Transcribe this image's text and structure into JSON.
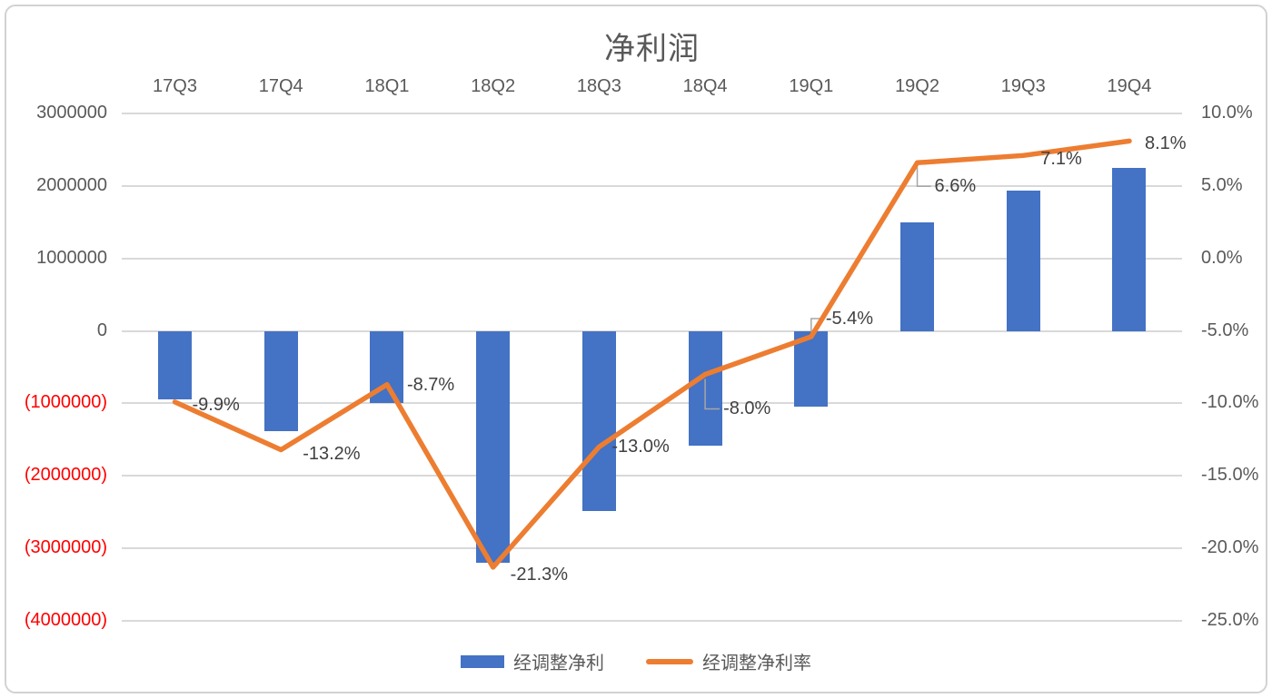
{
  "title": "净利润",
  "chart_data": {
    "type": "combo",
    "categories": [
      "17Q3",
      "17Q4",
      "18Q1",
      "18Q2",
      "18Q3",
      "18Q4",
      "19Q1",
      "19Q2",
      "19Q3",
      "19Q4"
    ],
    "series": [
      {
        "name": "经调整净利",
        "type": "bar",
        "axis": "left",
        "color": "#4472C4",
        "values": [
          -950000,
          -1380000,
          -990000,
          -3200000,
          -2480000,
          -1580000,
          -1050000,
          1500000,
          1930000,
          2250000
        ]
      },
      {
        "name": "经调整净利率",
        "type": "line",
        "axis": "right",
        "color": "#ED7D31",
        "values": [
          -9.9,
          -13.2,
          -8.7,
          -21.3,
          -13.0,
          -8.0,
          -5.4,
          6.6,
          7.1,
          8.1
        ],
        "labels": [
          "-9.9%",
          "-13.2%",
          "-8.7%",
          "-21.3%",
          "-13.0%",
          "-8.0%",
          "-5.4%",
          "6.6%",
          "7.1%",
          "8.1%"
        ],
        "label_offsets": [
          [
            19,
            3
          ],
          [
            24,
            4
          ],
          [
            22,
            0
          ],
          [
            19,
            8
          ],
          [
            14,
            0
          ],
          [
            20,
            38
          ],
          [
            16,
            -20
          ],
          [
            19,
            26
          ],
          [
            19,
            4
          ],
          [
            17,
            3
          ]
        ],
        "label_leaders": [
          false,
          false,
          false,
          false,
          false,
          true,
          true,
          true,
          false,
          false
        ],
        "leader_color": "#A6A6A6"
      }
    ],
    "left_axis": {
      "min": -4000000,
      "max": 3000000,
      "tick_step": 1000000,
      "tick_labels": [
        "3000000",
        "2000000",
        "1000000",
        "0",
        "(1000000)",
        "(2000000)",
        "(3000000)",
        "(4000000)"
      ],
      "tick_color": "#595959",
      "negative_tick_color": "#FF0000"
    },
    "right_axis": {
      "min": -25,
      "max": 10,
      "tick_step": 5,
      "tick_labels": [
        "10.0%",
        "5.0%",
        "0.0%",
        "-5.0%",
        "-10.0%",
        "-15.0%",
        "-20.0%",
        "-25.0%"
      ]
    },
    "grid": true,
    "category_labels_position": "top",
    "legend_position": "bottom",
    "gridline_color": "#D9D9D9",
    "title_color": "#595959"
  }
}
